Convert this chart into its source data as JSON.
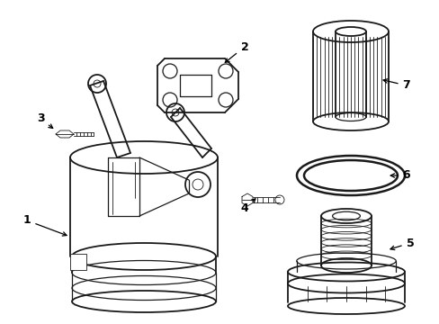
{
  "background_color": "#ffffff",
  "line_color": "#1a1a1a",
  "lw_main": 1.3,
  "lw_thin": 0.6,
  "lw_medium": 0.9
}
